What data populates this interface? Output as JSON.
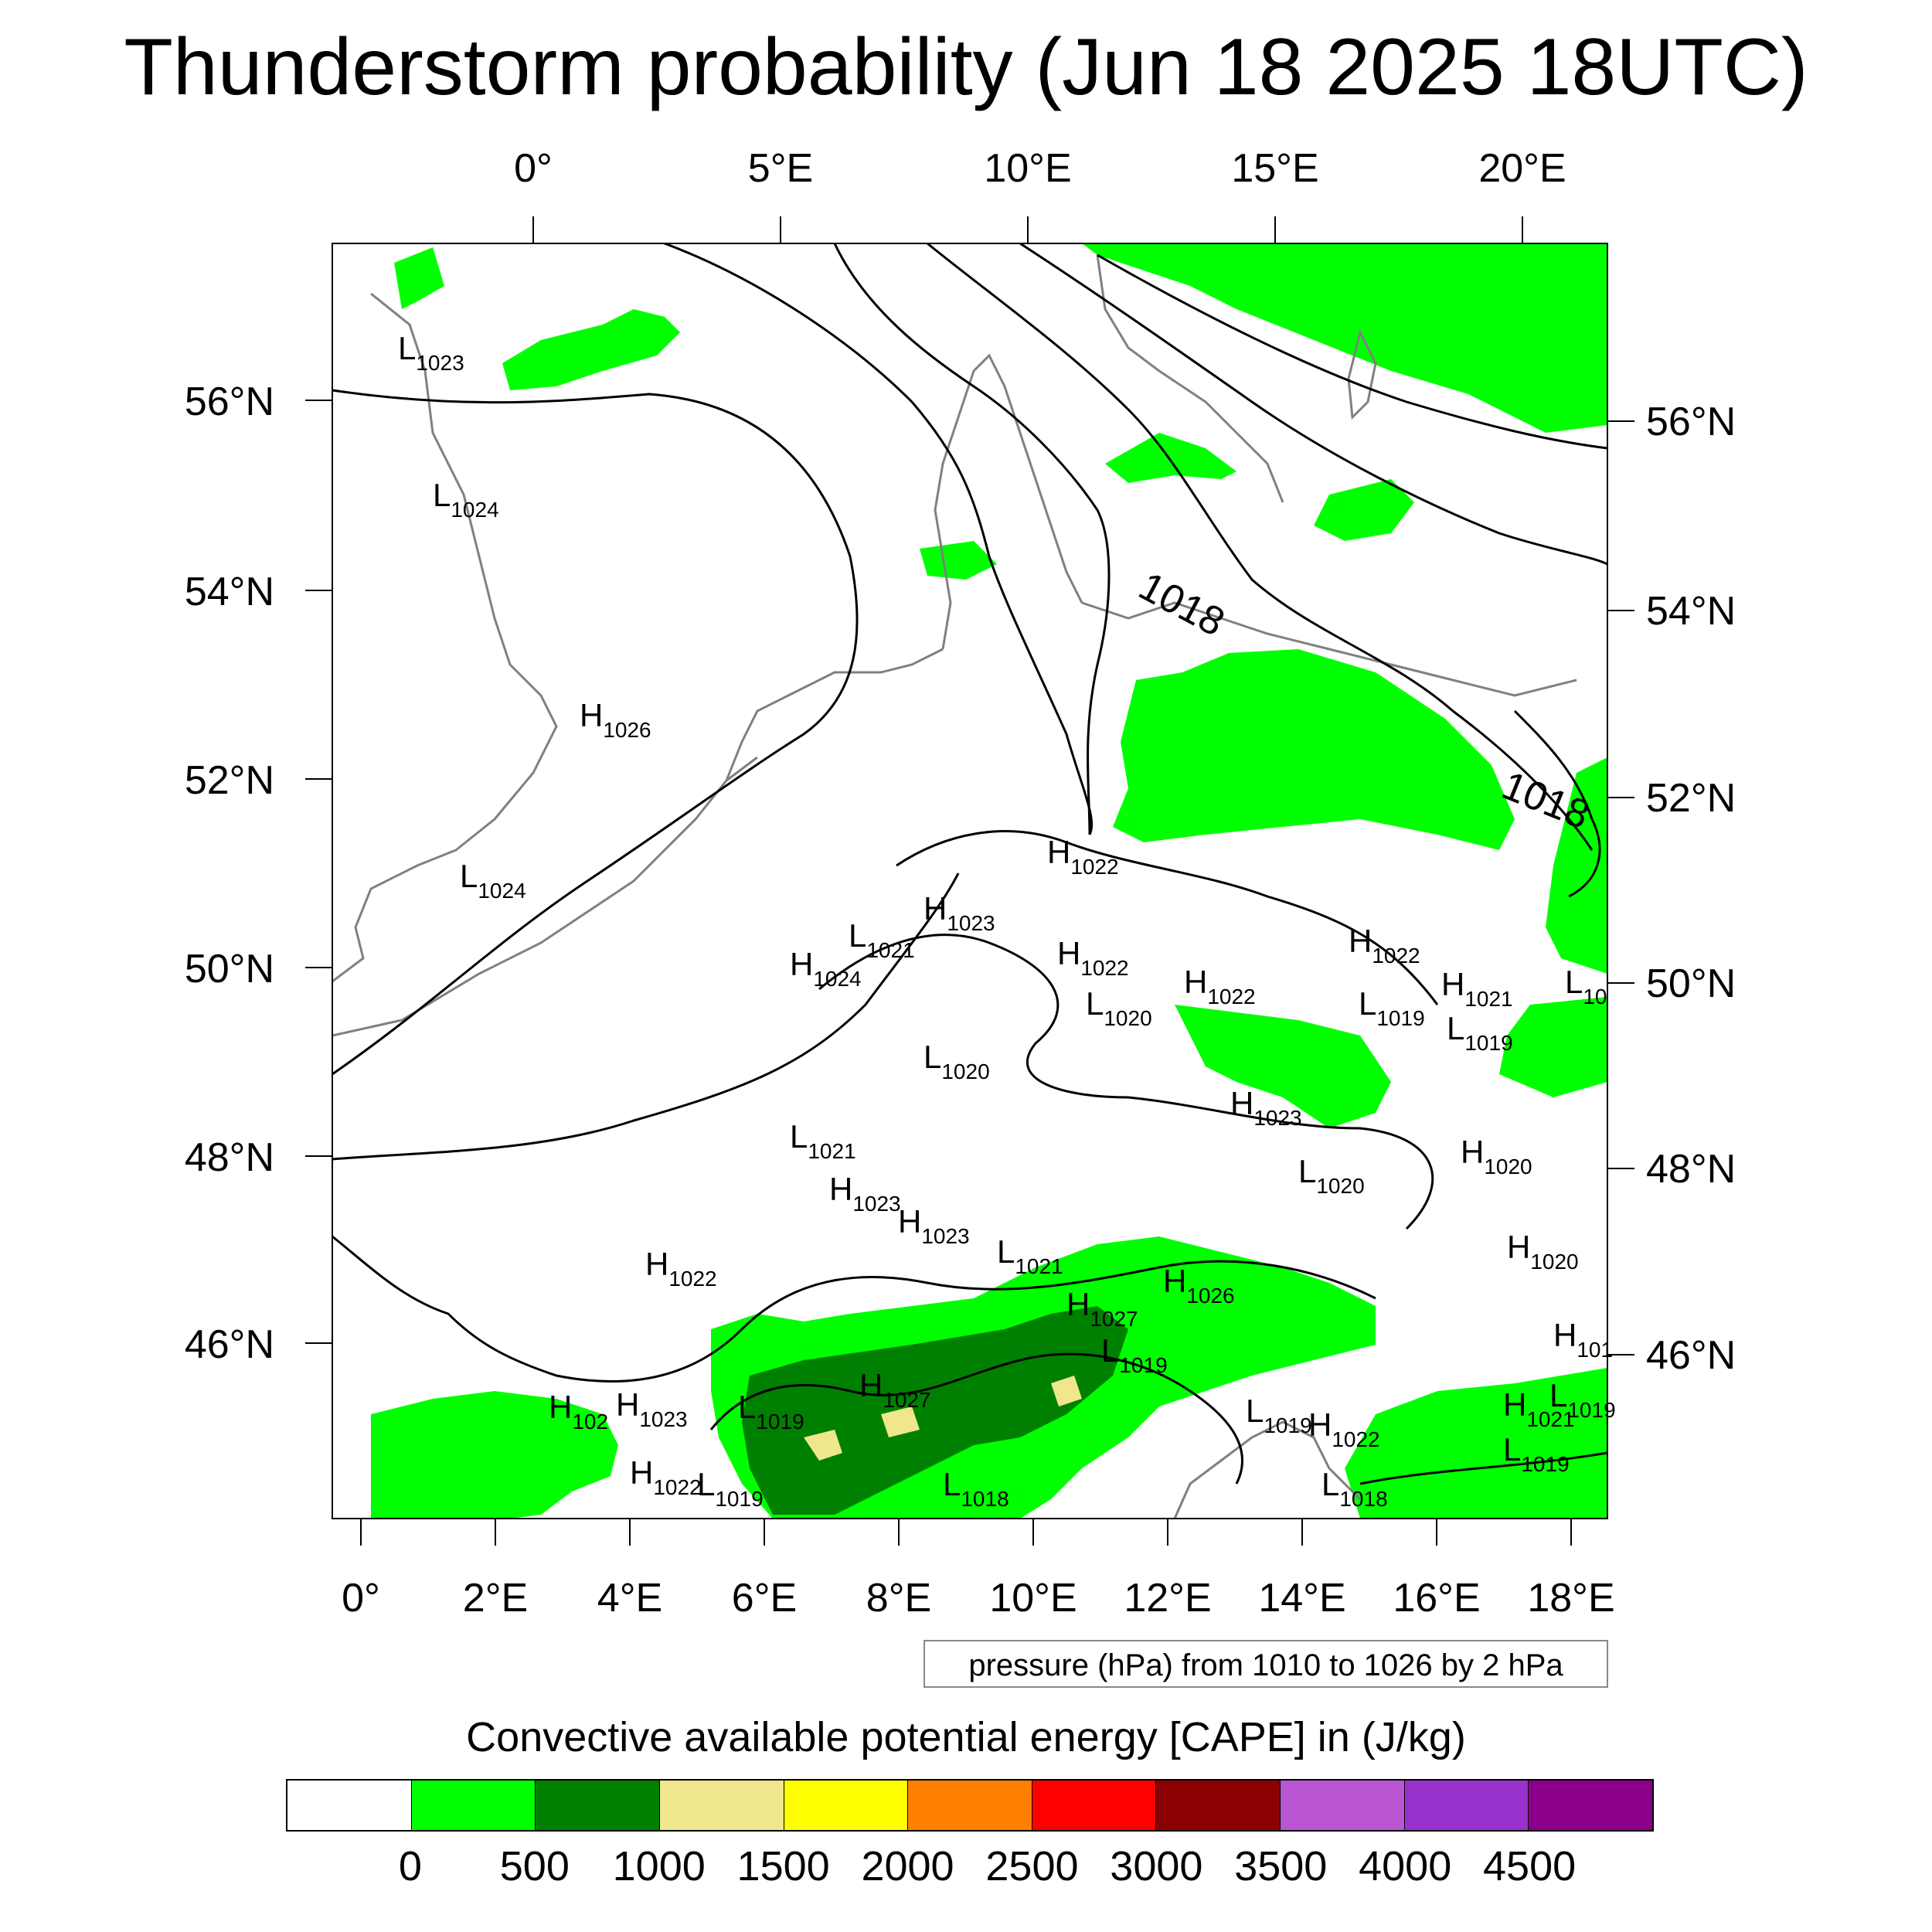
{
  "title": "Thunderstorm probability (Jun 18 2025 18UTC)",
  "top_lon_labels": [
    "0°",
    "5°E",
    "10°E",
    "15°E",
    "20°E"
  ],
  "bottom_lon_labels": [
    "0°",
    "2°E",
    "4°E",
    "6°E",
    "8°E",
    "10°E",
    "12°E",
    "14°E",
    "16°E",
    "18°E"
  ],
  "left_lat_labels": [
    "56°N",
    "54°N",
    "52°N",
    "50°N",
    "48°N",
    "46°N"
  ],
  "right_lat_labels": [
    "56°N",
    "54°N",
    "52°N",
    "50°N",
    "48°N",
    "46°N"
  ],
  "isobar_labels": [
    "1018",
    "1018"
  ],
  "pressure_centers": [
    {
      "letter": "L",
      "value": "1023"
    },
    {
      "letter": "L",
      "value": "1024"
    },
    {
      "letter": "H",
      "value": "1026"
    },
    {
      "letter": "L",
      "value": "1024"
    },
    {
      "letter": "H",
      "value": "1022"
    },
    {
      "letter": "H",
      "value": "1023"
    },
    {
      "letter": "L",
      "value": "1021"
    },
    {
      "letter": "H",
      "value": "1024"
    },
    {
      "letter": "H",
      "value": "1022"
    },
    {
      "letter": "L",
      "value": "1020"
    },
    {
      "letter": "H",
      "value": "1022"
    },
    {
      "letter": "L",
      "value": "1020"
    },
    {
      "letter": "H",
      "value": "1022"
    },
    {
      "letter": "L",
      "value": "1019"
    },
    {
      "letter": "H",
      "value": "1021"
    },
    {
      "letter": "L",
      "value": "1019"
    },
    {
      "letter": "L",
      "value": "10"
    },
    {
      "letter": "H",
      "value": "1023"
    },
    {
      "letter": "L",
      "value": "1021"
    },
    {
      "letter": "H",
      "value": "1020"
    },
    {
      "letter": "L",
      "value": "1020"
    },
    {
      "letter": "H",
      "value": "1023"
    },
    {
      "letter": "H",
      "value": "1023"
    },
    {
      "letter": "H",
      "value": "1022"
    },
    {
      "letter": "L",
      "value": "1021"
    },
    {
      "letter": "H",
      "value": "1026"
    },
    {
      "letter": "H",
      "value": "1020"
    },
    {
      "letter": "H",
      "value": "1027"
    },
    {
      "letter": "L",
      "value": "1019"
    },
    {
      "letter": "H",
      "value": "102"
    },
    {
      "letter": "H",
      "value": "1023"
    },
    {
      "letter": "L",
      "value": "1019"
    },
    {
      "letter": "H",
      "value": "1027"
    },
    {
      "letter": "L",
      "value": "1019"
    },
    {
      "letter": "H",
      "value": "1022"
    },
    {
      "letter": "H",
      "value": "1021"
    },
    {
      "letter": "L",
      "value": "1019"
    },
    {
      "letter": "H",
      "value": "1022"
    },
    {
      "letter": "L",
      "value": "1018"
    },
    {
      "letter": "L",
      "value": "1018"
    },
    {
      "letter": "L",
      "value": "1019"
    },
    {
      "letter": "H",
      "value": "101"
    },
    {
      "letter": "L",
      "value": "1019"
    }
  ],
  "pressure_note": "pressure (hPa) from 1010 to 1026 by 2 hPa",
  "colorbar": {
    "title": "Convective available potential energy [CAPE] in (J/kg)",
    "colors": [
      "#ffffff",
      "#00ff00",
      "#008000",
      "#f0e68c",
      "#ffff00",
      "#ff8000",
      "#ff0000",
      "#8b0000",
      "#ba55d3",
      "#9932cc",
      "#8b008b"
    ],
    "labels": [
      "0",
      "500",
      "1000",
      "1500",
      "2000",
      "2500",
      "3000",
      "3500",
      "4000",
      "4500"
    ]
  }
}
